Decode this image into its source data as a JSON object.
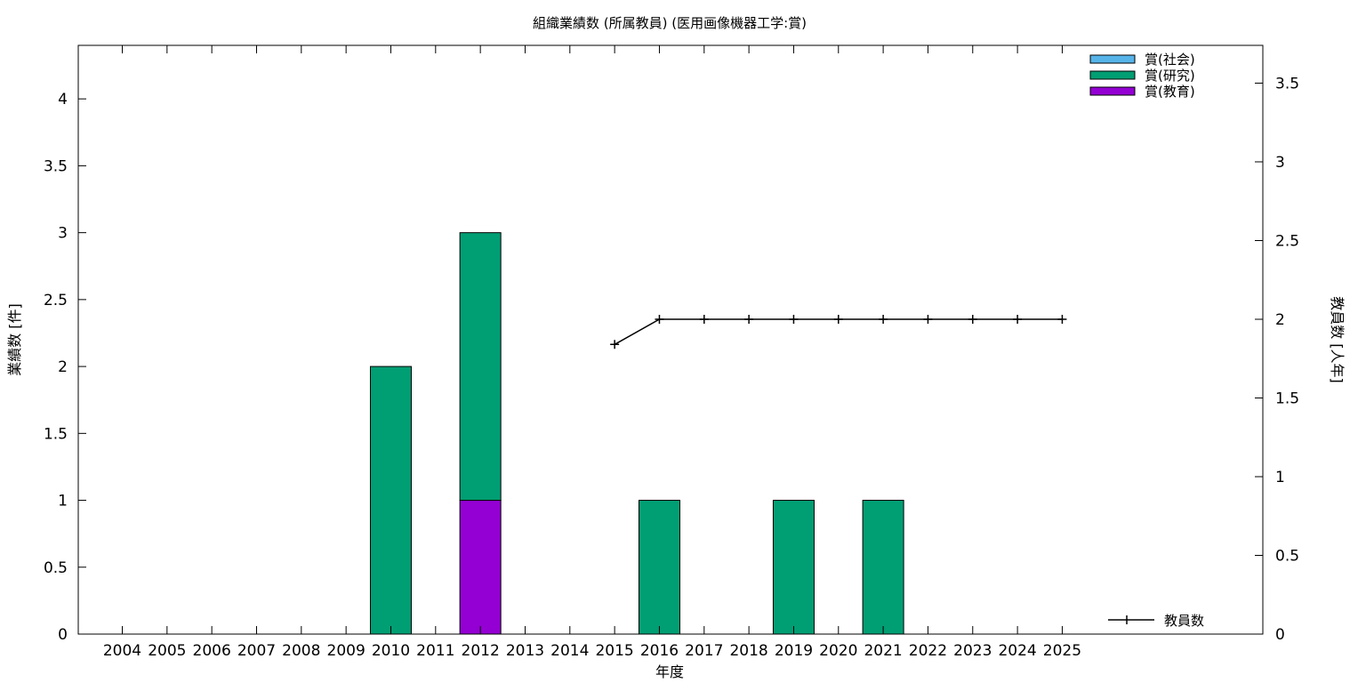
{
  "chart_data": {
    "type": "bar",
    "stacked": true,
    "title": "組織業績数 (所属教員) (医用画像機器工学:賞)",
    "xlabel": "年度",
    "ylabel": "業績数 [件]",
    "y2label": "教員数 [人年]",
    "categories": [
      "2004",
      "2005",
      "2006",
      "2007",
      "2008",
      "2009",
      "2010",
      "2011",
      "2012",
      "2013",
      "2014",
      "2015",
      "2016",
      "2017",
      "2018",
      "2019",
      "2020",
      "2021",
      "2022",
      "2023",
      "2024",
      "2025"
    ],
    "ylim": [
      0,
      4.4
    ],
    "yticks": [
      "0",
      "0.5",
      "1",
      "1.5",
      "2",
      "2.5",
      "3",
      "3.5",
      "4"
    ],
    "y2lim": [
      0,
      3.74
    ],
    "y2ticks": [
      "0",
      "0.5",
      "1",
      "1.5",
      "2",
      "2.5",
      "3",
      "3.5"
    ],
    "series": [
      {
        "name": "賞(教育)",
        "color": "#9400d3",
        "values": [
          0,
          0,
          0,
          0,
          0,
          0,
          0,
          0,
          1,
          0,
          0,
          0,
          0,
          0,
          0,
          0,
          0,
          0,
          0,
          0,
          0,
          0
        ]
      },
      {
        "name": "賞(研究)",
        "color": "#009e73",
        "values": [
          0,
          0,
          0,
          0,
          0,
          0,
          2,
          0,
          2,
          0,
          0,
          0,
          1,
          0,
          0,
          1,
          0,
          1,
          0,
          0,
          0,
          0
        ]
      },
      {
        "name": "賞(社会)",
        "color": "#56b4e9",
        "values": [
          0,
          0,
          0,
          0,
          0,
          0,
          0,
          0,
          0,
          0,
          0,
          0,
          0,
          0,
          0,
          0,
          0,
          0,
          0,
          0,
          0,
          0
        ]
      }
    ],
    "legend_order": [
      "賞(社会)",
      "賞(研究)",
      "賞(教育)"
    ],
    "legend_position": "top-right",
    "line_series": {
      "name": "教員数",
      "color": "#000000",
      "axis": "y2",
      "x": [
        "2015",
        "2016",
        "2017",
        "2018",
        "2019",
        "2020",
        "2021",
        "2022",
        "2023",
        "2024",
        "2025"
      ],
      "values": [
        1.84,
        2,
        2,
        2,
        2,
        2,
        2,
        2,
        2,
        2,
        2
      ]
    },
    "line_legend_position": "bottom-right",
    "grid": false
  }
}
